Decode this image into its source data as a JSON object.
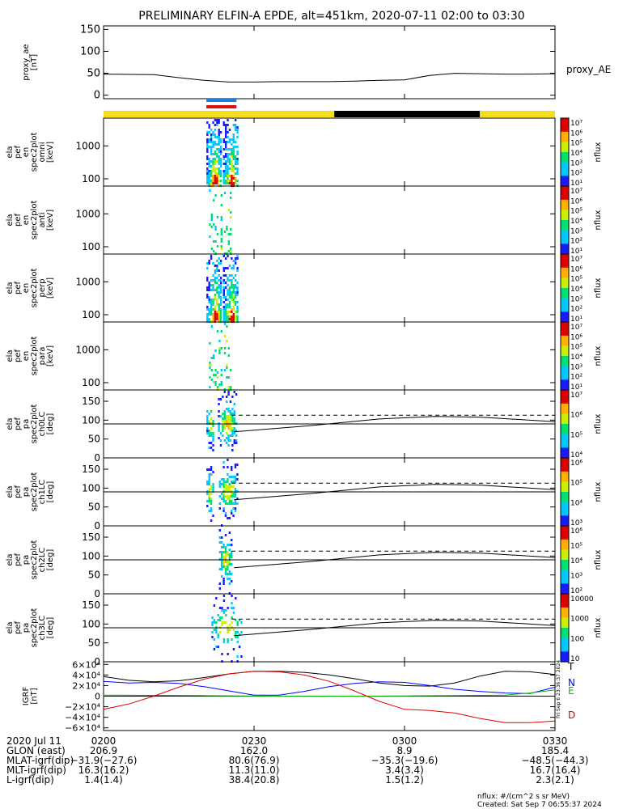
{
  "title": "PRELIMINARY ELFIN-A EPDE, alt=451km, 2020-07-11 02:00 to 03:30",
  "colors": {
    "orbit_bar_day": "#f5dd1e",
    "orbit_bar_night": "#000000",
    "marker_blue": "#1a7fe0",
    "marker_red": "#e01010",
    "igrf_T": "#000000",
    "igrf_N": "#0000ff",
    "igrf_E": "#00c000",
    "igrf_D": "#e00000",
    "line_color": "#000000"
  },
  "chart_data": [
    {
      "type": "line",
      "id": "proxy_ae",
      "ylabel_lines": [
        "proxy_ae",
        "[nT]"
      ],
      "right_label": "proxy_AE",
      "ylim": [
        -8,
        158
      ],
      "yticks": [
        0,
        50,
        100,
        150
      ],
      "x": [
        0,
        10,
        15,
        20,
        25,
        30,
        35,
        38,
        40,
        45,
        50,
        55,
        60,
        65,
        70,
        75,
        80,
        85,
        90
      ],
      "values": [
        48,
        47,
        40,
        34,
        30,
        30,
        31,
        31,
        31,
        31,
        32,
        34,
        35,
        45,
        50,
        49,
        48,
        48,
        49
      ]
    },
    {
      "type": "bar",
      "id": "orbit_state",
      "segments": [
        {
          "start": 0,
          "end": 46,
          "state": "day"
        },
        {
          "start": 46,
          "end": 75,
          "state": "night"
        },
        {
          "start": 75,
          "end": 90,
          "state": "day"
        }
      ],
      "markers": [
        {
          "start": 20.5,
          "end": 26.5,
          "color": "blue"
        },
        {
          "start": 20.5,
          "end": 26.5,
          "color": "red"
        }
      ]
    },
    {
      "type": "heatmap",
      "id": "en_omni",
      "ylabel_lines": [
        "ela",
        "pef",
        "en",
        "spec2plot",
        "omni",
        "[keV]"
      ],
      "yscale": "log",
      "ylim": [
        60,
        7000
      ],
      "yticks": [
        100,
        1000
      ],
      "ytick_labels": [
        "100",
        "1000"
      ],
      "colorbar": {
        "label": "nflux",
        "ticks": [
          "10⁷",
          "10⁶",
          "10⁵",
          "10⁴",
          "10³",
          "10²",
          "10¹"
        ]
      },
      "active": [
        {
          "start": 20.5,
          "end": 23.5
        },
        {
          "start": 23.8,
          "end": 26.8
        }
      ],
      "density": 0.85
    },
    {
      "type": "heatmap",
      "id": "en_anti",
      "ylabel_lines": [
        "ela",
        "pef",
        "en",
        "spec2plot",
        "anti",
        "[keV]"
      ],
      "yscale": "log",
      "ylim": [
        60,
        7000
      ],
      "yticks": [
        100,
        1000
      ],
      "ytick_labels": [
        "100",
        "1000"
      ],
      "colorbar": {
        "label": "nflux",
        "ticks": [
          "10⁷",
          "10⁶",
          "10⁵",
          "10⁴",
          "10³",
          "10²",
          "10¹"
        ]
      },
      "active": [
        {
          "start": 21.0,
          "end": 23.5
        },
        {
          "start": 24.0,
          "end": 25.5
        }
      ],
      "density": 0.25
    },
    {
      "type": "heatmap",
      "id": "en_perp",
      "ylabel_lines": [
        "ela",
        "pef",
        "en",
        "spec2plot",
        "perp",
        "[keV]"
      ],
      "yscale": "log",
      "ylim": [
        60,
        7000
      ],
      "yticks": [
        100,
        1000
      ],
      "ytick_labels": [
        "100",
        "1000"
      ],
      "colorbar": {
        "label": "nflux",
        "ticks": [
          "10⁷",
          "10⁶",
          "10⁵",
          "10⁴",
          "10³",
          "10²",
          "10¹"
        ]
      },
      "active": [
        {
          "start": 20.5,
          "end": 23.5
        },
        {
          "start": 23.8,
          "end": 26.8
        }
      ],
      "density": 0.85
    },
    {
      "type": "heatmap",
      "id": "en_para",
      "ylabel_lines": [
        "ela",
        "pef",
        "en",
        "spec2plot",
        "para",
        "[keV]"
      ],
      "yscale": "log",
      "ylim": [
        60,
        7000
      ],
      "yticks": [
        100,
        1000
      ],
      "ytick_labels": [
        "100",
        "1000"
      ],
      "colorbar": {
        "label": "nflux",
        "ticks": [
          "10⁷",
          "10⁶",
          "10⁵",
          "10⁴",
          "10³",
          "10²",
          "10¹"
        ]
      },
      "active": [
        {
          "start": 21.0,
          "end": 23.5
        },
        {
          "start": 24.0,
          "end": 25.5
        }
      ],
      "density": 0.25
    },
    {
      "type": "heatmap",
      "id": "pa_ch0",
      "ylabel_lines": [
        "ela",
        "pef",
        "pa",
        "spec2plot",
        "ch0LC",
        "[deg]"
      ],
      "ylim": [
        0,
        180
      ],
      "yticks": [
        0,
        50,
        100,
        150
      ],
      "ytick_labels": [
        "0",
        "50",
        "100",
        "150"
      ],
      "colorbar": {
        "label": "nflux",
        "ticks": [
          "10⁷",
          "10⁶",
          "10⁵",
          "10⁴"
        ]
      },
      "active": [
        {
          "start": 20.5,
          "end": 22.0
        },
        {
          "start": 22.8,
          "end": 26.5
        }
      ],
      "density": 0.75,
      "lines": {
        "hline": 90,
        "dashed": 113,
        "dashed_start": 25.5,
        "lc_x": [
          26,
          40,
          55,
          66,
          75,
          90
        ],
        "lc_y": [
          69,
          84,
          103,
          110,
          108,
          96
        ]
      }
    },
    {
      "type": "heatmap",
      "id": "pa_ch1",
      "ylabel_lines": [
        "ela",
        "pef",
        "pa",
        "spec2plot",
        "ch1LC",
        "[deg]"
      ],
      "ylim": [
        0,
        180
      ],
      "yticks": [
        0,
        50,
        100,
        150
      ],
      "ytick_labels": [
        "0",
        "50",
        "100",
        "150"
      ],
      "colorbar": {
        "label": "nflux",
        "ticks": [
          "10⁶",
          "10⁵",
          "10⁴",
          "10³"
        ]
      },
      "active": [
        {
          "start": 20.5,
          "end": 21.8
        },
        {
          "start": 23.0,
          "end": 26.5
        }
      ],
      "density": 0.7,
      "lines": {
        "hline": 90,
        "dashed": 113,
        "dashed_start": 25.5,
        "lc_x": [
          26,
          40,
          55,
          66,
          75,
          90
        ],
        "lc_y": [
          69,
          84,
          103,
          110,
          108,
          96
        ]
      }
    },
    {
      "type": "heatmap",
      "id": "pa_ch2",
      "ylabel_lines": [
        "ela",
        "pef",
        "pa",
        "spec2plot",
        "ch2LC",
        "[deg]"
      ],
      "ylim": [
        0,
        180
      ],
      "yticks": [
        0,
        50,
        100,
        150
      ],
      "ytick_labels": [
        "0",
        "50",
        "100",
        "150"
      ],
      "colorbar": {
        "label": "nflux",
        "ticks": [
          "10⁶",
          "10⁵",
          "10⁴",
          "10³",
          "10²"
        ]
      },
      "active": [
        {
          "start": 23.0,
          "end": 25.5
        }
      ],
      "density": 0.7,
      "lines": {
        "hline": 90,
        "dashed": 113,
        "dashed_start": 25.5,
        "lc_x": [
          26,
          40,
          55,
          66,
          75,
          90
        ],
        "lc_y": [
          69,
          84,
          103,
          110,
          108,
          96
        ]
      }
    },
    {
      "type": "heatmap",
      "id": "pa_ch3",
      "ylabel_lines": [
        "ela",
        "pef",
        "pa",
        "spec2plot",
        "ch3LC",
        "[deg]"
      ],
      "ylim": [
        0,
        180
      ],
      "yticks": [
        0,
        50,
        100,
        150
      ],
      "ytick_labels": [
        "0",
        "50",
        "100",
        "150"
      ],
      "colorbar": {
        "label": "nflux",
        "ticks": [
          "10000",
          "1000",
          "100",
          "10"
        ]
      },
      "active": [
        {
          "start": 21.5,
          "end": 27.5
        }
      ],
      "density": 0.35,
      "lines": {
        "hline": 90,
        "dashed": 113,
        "dashed_start": 25.5,
        "lc_x": [
          26,
          40,
          55,
          66,
          75,
          90
        ],
        "lc_y": [
          69,
          84,
          103,
          110,
          108,
          96
        ]
      }
    },
    {
      "type": "line",
      "id": "igrf",
      "ylabel_lines": [
        "IGRF",
        "[nT]"
      ],
      "ylim": [
        -65000,
        65000
      ],
      "yticks": [
        60000,
        40000,
        20000,
        0,
        -20000,
        -40000,
        -60000
      ],
      "ytick_labels": [
        "6×10⁴",
        "4×10⁴",
        "2×10⁴",
        "0",
        "−2×10⁴",
        "−4×10⁴",
        "−6×10⁴"
      ],
      "series": [
        {
          "name": "T",
          "x": [
            0,
            5,
            10,
            15,
            20,
            25,
            30,
            35,
            40,
            45,
            50,
            55,
            60,
            65,
            70,
            75,
            80,
            85,
            90
          ],
          "values": [
            37000,
            30000,
            27000,
            29000,
            35000,
            42000,
            47000,
            47000,
            45000,
            40000,
            33000,
            25000,
            20000,
            19000,
            25000,
            38000,
            47000,
            46000,
            41000
          ]
        },
        {
          "name": "N",
          "x": [
            0,
            5,
            10,
            15,
            20,
            25,
            30,
            35,
            40,
            45,
            50,
            55,
            60,
            65,
            70,
            75,
            80,
            85,
            90
          ],
          "values": [
            28000,
            25000,
            26000,
            24000,
            18000,
            10000,
            2000,
            2000,
            9000,
            18000,
            24000,
            27000,
            26000,
            20000,
            13000,
            9000,
            6000,
            5000,
            17000
          ]
        },
        {
          "name": "E",
          "x": [
            0,
            10,
            20,
            30,
            40,
            50,
            60,
            70,
            80,
            85,
            90
          ],
          "values": [
            2000,
            1500,
            1000,
            200,
            -200,
            0,
            500,
            1000,
            2000,
            6000,
            12000
          ]
        },
        {
          "name": "D",
          "x": [
            0,
            5,
            10,
            15,
            20,
            25,
            30,
            35,
            40,
            45,
            50,
            55,
            60,
            65,
            70,
            75,
            80,
            85,
            90
          ],
          "values": [
            -25000,
            -15000,
            0,
            17000,
            32000,
            42000,
            47000,
            46000,
            40000,
            28000,
            10000,
            -10000,
            -25000,
            -27000,
            -32000,
            -42000,
            -50000,
            -50000,
            -47000
          ]
        }
      ]
    }
  ],
  "ticks_header": "2020 Jul 11",
  "x_ticks": [
    {
      "t": 0,
      "label": "0200"
    },
    {
      "t": 30,
      "label": "0230"
    },
    {
      "t": 60,
      "label": "0300"
    },
    {
      "t": 90,
      "label": "0330"
    }
  ],
  "annotation_rows": [
    {
      "label": "GLON (east)",
      "values": [
        "206.9",
        "162.0",
        "8.9",
        "185.4"
      ]
    },
    {
      "label": "MLAT-igrf(dip)",
      "values": [
        "−31.9(−27.6)",
        "80.6(76.9)",
        "−35.3(−19.6)",
        "−48.5(−44.3)"
      ]
    },
    {
      "label": "MLT-igrf(dip)",
      "values": [
        "16.3(16.2)",
        "11.3(11.0)",
        "3.4(3.4)",
        "16.7(16.4)"
      ]
    },
    {
      "label": "L-igrf(dip)",
      "values": [
        "1.4(1.4)",
        "38.4(20.8)",
        "1.5(1.2)",
        "2.3(2.1)"
      ]
    }
  ],
  "footer": {
    "units": "nflux: #/(cm^2 s sr MeV)",
    "created": "Created: Sat Sep  7 06:55:37 2024",
    "side_stamp": "Fri Sep  6 23:36:37 2024"
  }
}
